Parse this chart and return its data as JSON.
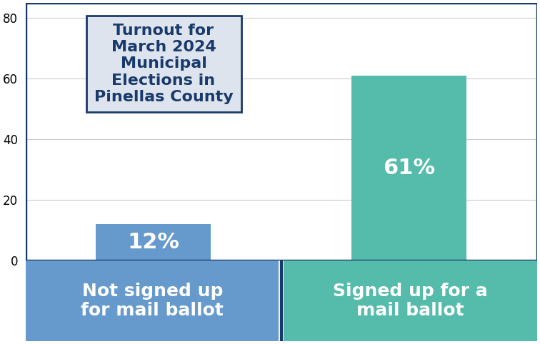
{
  "categories": [
    "Not signed up\nfor mail ballot",
    "Signed up for a\nmail ballot"
  ],
  "values": [
    12,
    61
  ],
  "bar_colors": [
    "#6699cc",
    "#55bbaa"
  ],
  "label_colors": [
    "white",
    "white"
  ],
  "bar_labels": [
    "12%",
    "61%"
  ],
  "ylim": [
    0,
    85
  ],
  "yticks": [
    0,
    20,
    40,
    60,
    80
  ],
  "title_text": "Turnout for\nMarch 2024\nMunicipal\nElections in\nPinellas County",
  "title_box_facecolor": "#dde4ee",
  "title_box_edgecolor": "#1a3a6b",
  "chart_border_color": "#1a3a6b",
  "chart_bg_color": "white",
  "footer_left_color": "#6699cc",
  "footer_right_color": "#55bbaa",
  "footer_divider_color": "#1a3a6b",
  "footer_text_color": "white",
  "bar_label_fontsize": 22,
  "footer_fontsize": 18,
  "title_fontsize": 16,
  "tick_fontsize": 12,
  "grid_color": "#cccccc"
}
